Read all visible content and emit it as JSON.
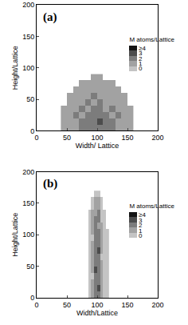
{
  "chart_data": [
    {
      "type": "heatmap",
      "panel_label": "(a)",
      "x_label": "Width/ Lattice",
      "y_label": "Height/Lattice",
      "xlim": [
        0,
        200
      ],
      "xticks": [
        0,
        50,
        100,
        150,
        200
      ],
      "ylim": [
        0,
        200
      ],
      "yticks": [
        0,
        50,
        100,
        150,
        200
      ],
      "x": [
        45,
        55,
        65,
        75,
        85,
        95,
        105,
        115,
        125,
        135,
        145,
        155
      ],
      "y": [
        5,
        15,
        25,
        35,
        45,
        55,
        65,
        75,
        85
      ],
      "z": [
        [
          1,
          1,
          1,
          2,
          2,
          2,
          2,
          2,
          2,
          1,
          1,
          1
        ],
        [
          1,
          1,
          1,
          2,
          2,
          2,
          3,
          2,
          2,
          1,
          1,
          1
        ],
        [
          1,
          1,
          2,
          1,
          2,
          2,
          2,
          2,
          1,
          2,
          1,
          1
        ],
        [
          1,
          1,
          1,
          2,
          1,
          2,
          2,
          1,
          2,
          1,
          1,
          1
        ],
        [
          null,
          1,
          1,
          1,
          2,
          1,
          2,
          1,
          1,
          1,
          1,
          null
        ],
        [
          null,
          1,
          1,
          1,
          1,
          2,
          1,
          1,
          1,
          1,
          1,
          null
        ],
        [
          null,
          null,
          1,
          1,
          1,
          1,
          1,
          1,
          1,
          1,
          null,
          null
        ],
        [
          null,
          null,
          null,
          1,
          1,
          1,
          1,
          1,
          1,
          null,
          null,
          null
        ],
        [
          null,
          null,
          null,
          null,
          null,
          1,
          1,
          null,
          null,
          null,
          null,
          null
        ]
      ],
      "colorbar": {
        "title": "M atoms/Lattice",
        "range": [
          0,
          4
        ],
        "ticks": [
          0,
          1,
          2,
          3,
          {
            "value": 4,
            "label": "≥4"
          }
        ]
      },
      "colors": [
        "#c4c4c4",
        "#a2a2a2",
        "#7c7c7c",
        "#4c4c4c",
        "#141414"
      ]
    },
    {
      "type": "heatmap",
      "panel_label": "(b)",
      "x_label": "Width/Lattice",
      "y_label": "Height/Lattice",
      "xlim": [
        0,
        200
      ],
      "xticks": [
        0,
        50,
        100,
        150,
        200
      ],
      "ylim": [
        0,
        200
      ],
      "yticks": [
        0,
        50,
        100,
        150,
        200
      ],
      "x": [
        82.5,
        87.5,
        92.5,
        97.5,
        102.5,
        107.5,
        112.5,
        117.5
      ],
      "y": [
        5,
        15,
        25,
        35,
        45,
        55,
        65,
        75,
        85,
        95,
        105,
        115,
        125,
        135,
        145,
        155,
        165
      ],
      "z": [
        [
          null,
          0,
          1,
          2,
          2,
          1,
          0,
          0
        ],
        [
          null,
          0,
          1,
          2,
          3,
          1,
          0,
          0
        ],
        [
          null,
          0,
          1,
          2,
          2,
          1,
          0,
          0
        ],
        [
          null,
          0,
          0,
          2,
          2,
          1,
          0,
          0
        ],
        [
          null,
          0,
          1,
          3,
          2,
          1,
          0,
          0
        ],
        [
          null,
          0,
          1,
          2,
          2,
          1,
          0,
          0
        ],
        [
          null,
          0,
          1,
          2,
          2,
          0,
          0,
          0
        ],
        [
          null,
          0,
          1,
          2,
          3,
          1,
          0,
          0
        ],
        [
          null,
          0,
          1,
          2,
          2,
          1,
          0,
          0
        ],
        [
          null,
          0,
          0,
          2,
          2,
          1,
          0,
          0
        ],
        [
          null,
          0,
          1,
          2,
          2,
          1,
          0,
          0
        ],
        [
          null,
          0,
          1,
          2,
          1,
          1,
          0,
          null
        ],
        [
          null,
          0,
          1,
          2,
          2,
          0,
          0,
          null
        ],
        [
          null,
          0,
          1,
          1,
          2,
          0,
          0,
          null
        ],
        [
          null,
          null,
          0,
          1,
          1,
          0,
          null,
          null
        ],
        [
          null,
          null,
          0,
          1,
          1,
          0,
          null,
          null
        ],
        [
          null,
          null,
          null,
          0,
          0,
          null,
          null,
          null
        ]
      ],
      "colorbar": {
        "title": "M atoms/Lattice",
        "range": [
          0,
          4
        ],
        "ticks": [
          0,
          1,
          2,
          3,
          {
            "value": 4,
            "label": "≥4"
          }
        ]
      },
      "colors": [
        "#c4c4c4",
        "#a2a2a2",
        "#7c7c7c",
        "#4c4c4c",
        "#141414"
      ]
    }
  ]
}
